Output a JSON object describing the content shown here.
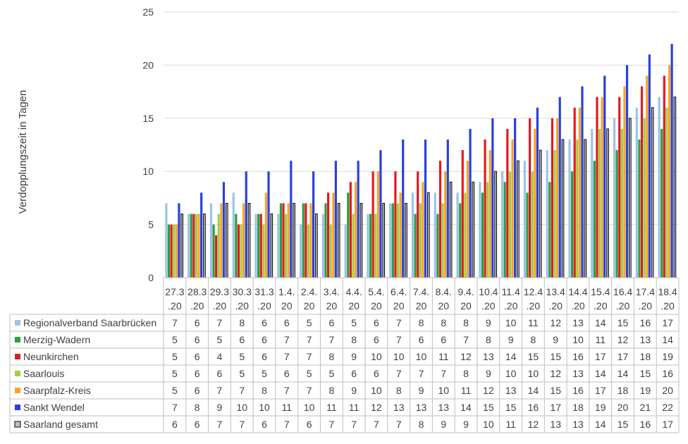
{
  "chart_data": {
    "type": "bar",
    "ylabel": "Verdopplungszeit in Tagen",
    "ylim": [
      0,
      25
    ],
    "yticks": [
      0,
      5,
      10,
      15,
      20,
      25
    ],
    "grid": true,
    "legend": "data-table",
    "categories": [
      "27.3.20",
      "28.3.20",
      "29.3.20",
      "30.3.20",
      "31.3.20",
      "1.4.20",
      "2.4.20",
      "3.4.20",
      "4.4.20",
      "5.4.20",
      "6.4.20",
      "7.4.20",
      "8.4.20",
      "9.4.20",
      "10.4.20",
      "11.4.20",
      "12.4.20",
      "13.4.20",
      "14.4.20",
      "15.4.20",
      "16.4.20",
      "17.4.20",
      "18.4.20"
    ],
    "category_lines": [
      [
        "27.3",
        ".20"
      ],
      [
        "28.3",
        ".20"
      ],
      [
        "29.3",
        ".20"
      ],
      [
        "30.3",
        ".20"
      ],
      [
        "31.3",
        ".20"
      ],
      [
        "1.4.",
        "20"
      ],
      [
        "2.4.",
        "20"
      ],
      [
        "3.4.",
        "20"
      ],
      [
        "4.4.",
        "20"
      ],
      [
        "5.4.",
        "20"
      ],
      [
        "6.4.",
        "20"
      ],
      [
        "7.4.",
        "20"
      ],
      [
        "8.4.",
        "20"
      ],
      [
        "9.4.",
        "20"
      ],
      [
        "10.4",
        ".20"
      ],
      [
        "11.4",
        ".20"
      ],
      [
        "12.4",
        ".20"
      ],
      [
        "13.4",
        ".20"
      ],
      [
        "14.4",
        ".20"
      ],
      [
        "15.4",
        ".20"
      ],
      [
        "16.4",
        ".20"
      ],
      [
        "17.4",
        ".20"
      ],
      [
        "18.4",
        ".20"
      ]
    ],
    "series": [
      {
        "name": "Regionalverband Saarbrücken",
        "color": "#9dc3e6",
        "values": [
          7,
          6,
          7,
          8,
          6,
          6,
          5,
          6,
          5,
          6,
          7,
          8,
          8,
          8,
          9,
          10,
          11,
          12,
          13,
          14,
          15,
          16,
          17
        ]
      },
      {
        "name": "Merzig-Wadern",
        "color": "#2e9e3e",
        "values": [
          5,
          6,
          5,
          6,
          6,
          7,
          7,
          7,
          8,
          6,
          7,
          6,
          6,
          7,
          8,
          9,
          8,
          9,
          10,
          11,
          12,
          13,
          14
        ]
      },
      {
        "name": "Neunkirchen",
        "color": "#e31a1c",
        "values": [
          5,
          6,
          4,
          5,
          6,
          7,
          7,
          8,
          9,
          10,
          10,
          10,
          11,
          12,
          13,
          14,
          15,
          15,
          16,
          17,
          17,
          18,
          19
        ]
      },
      {
        "name": "Saarlouis",
        "color": "#9ed048",
        "values": [
          5,
          6,
          6,
          5,
          5,
          6,
          5,
          5,
          6,
          6,
          7,
          7,
          7,
          8,
          9,
          10,
          10,
          12,
          13,
          14,
          14,
          15,
          16
        ]
      },
      {
        "name": "Saarpfalz-Kreis",
        "color": "#f4a52c",
        "values": [
          5,
          6,
          7,
          7,
          8,
          7,
          7,
          8,
          9,
          10,
          8,
          9,
          10,
          11,
          12,
          13,
          14,
          15,
          16,
          17,
          18,
          19,
          20
        ]
      },
      {
        "name": "Sankt Wendel",
        "color": "#2a3ee0",
        "values": [
          7,
          8,
          9,
          10,
          10,
          11,
          10,
          11,
          11,
          12,
          13,
          13,
          13,
          14,
          15,
          15,
          16,
          17,
          18,
          19,
          20,
          21,
          22
        ]
      },
      {
        "name": "Saarland gesamt",
        "color": "#bfbfbf",
        "values": [
          6,
          6,
          7,
          7,
          6,
          7,
          6,
          7,
          7,
          7,
          7,
          8,
          9,
          9,
          10,
          11,
          12,
          13,
          13,
          14,
          15,
          16,
          17
        ]
      }
    ]
  }
}
